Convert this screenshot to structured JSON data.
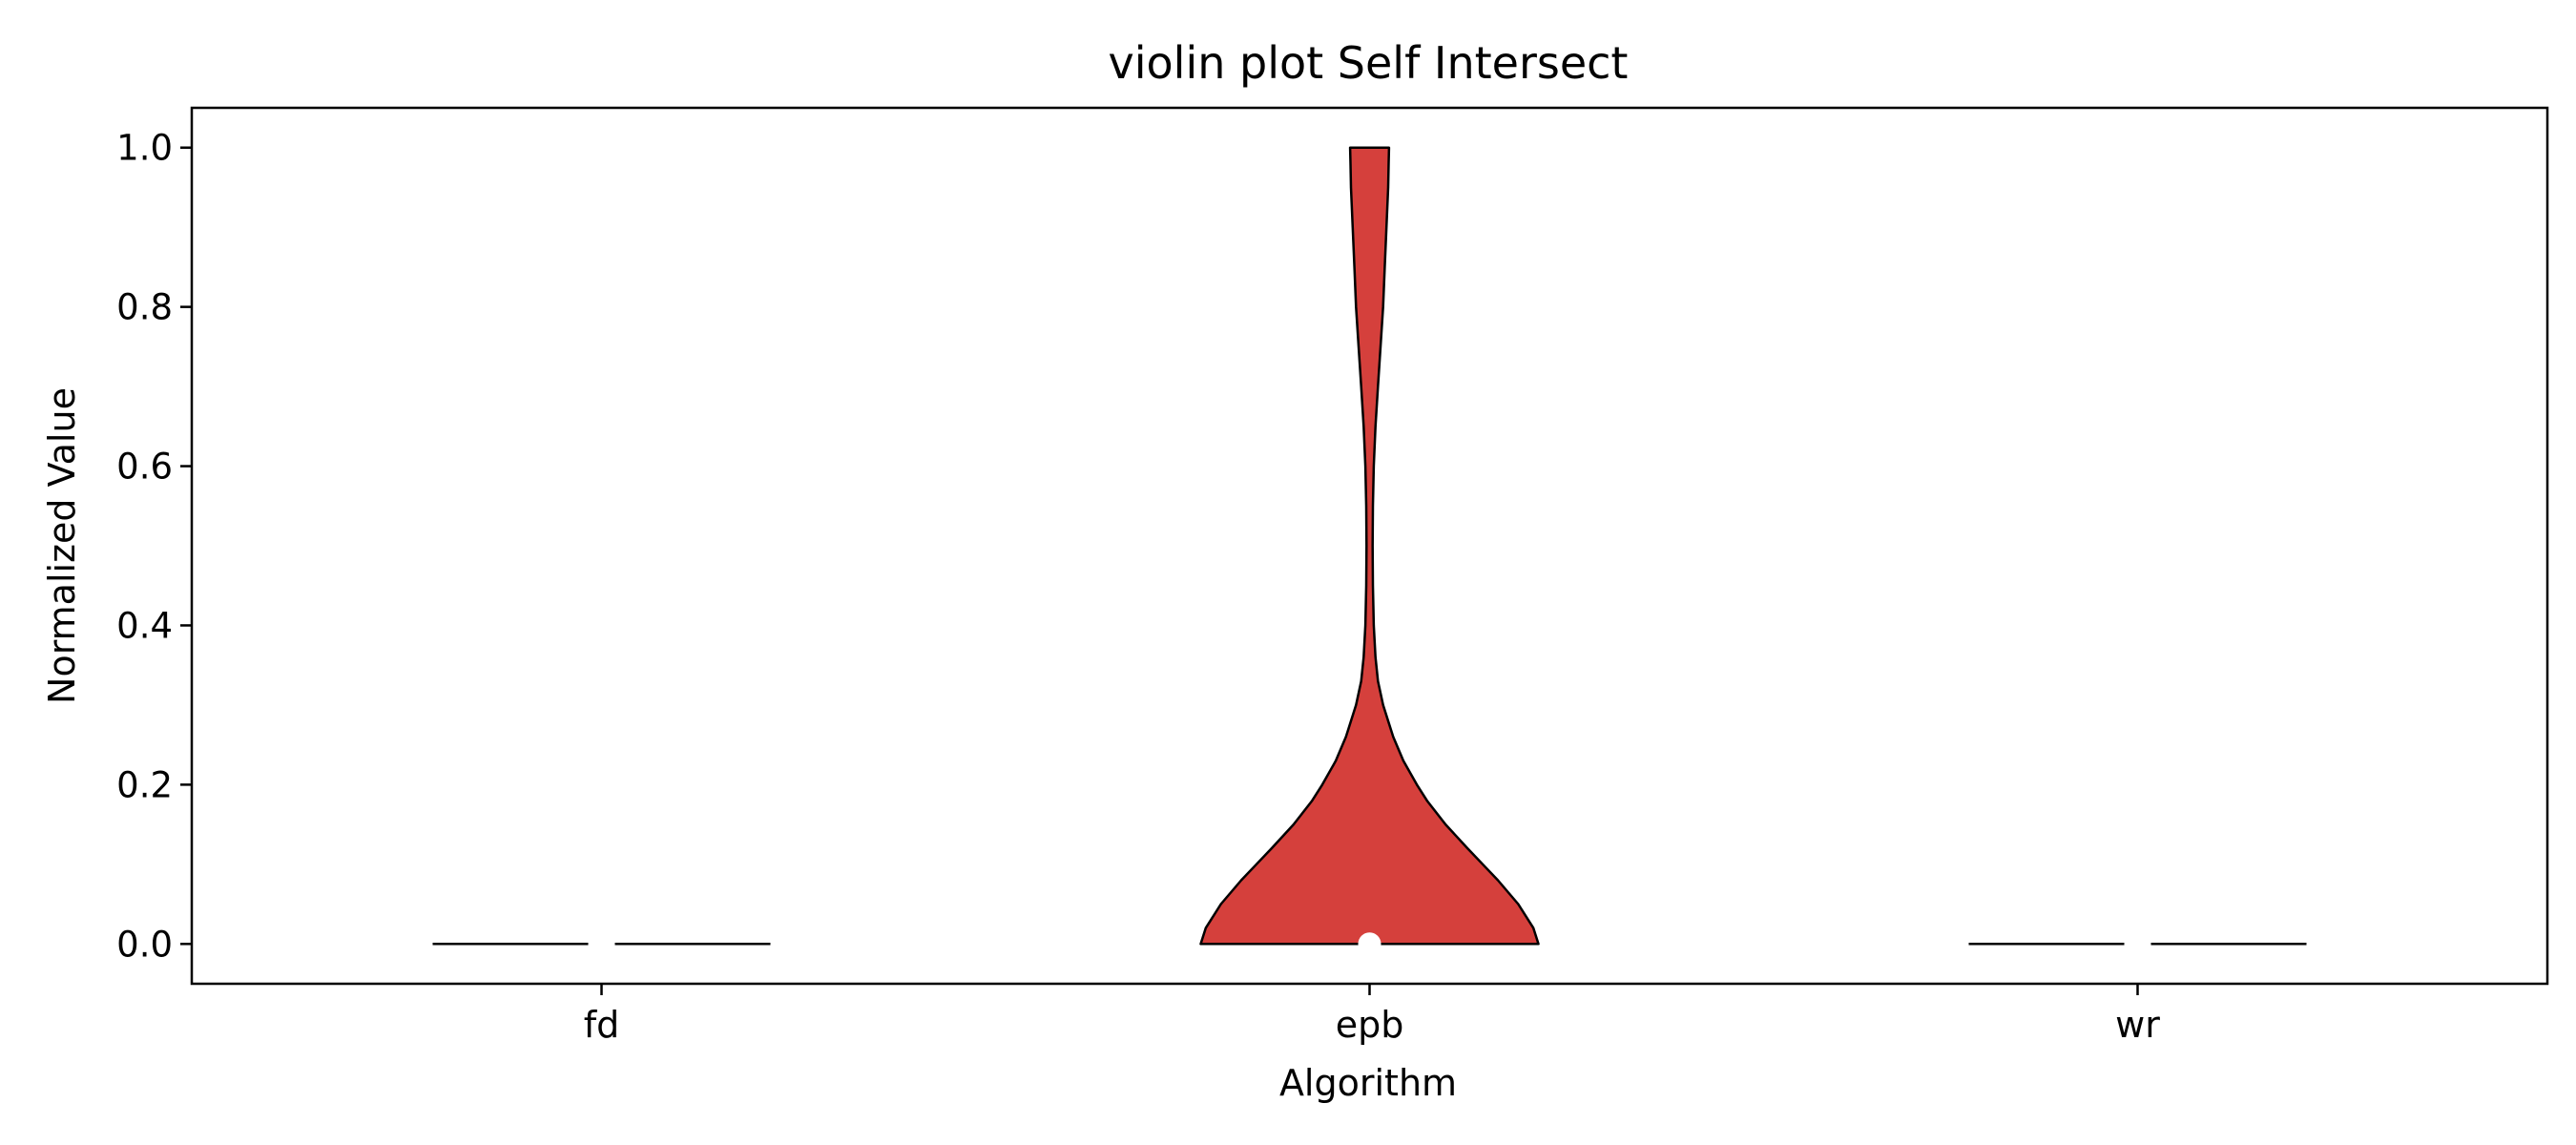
{
  "chart_data": {
    "type": "violin",
    "title": "violin plot Self Intersect",
    "xlabel": "Algorithm",
    "ylabel": "Normalized Value",
    "categories": [
      "fd",
      "epb",
      "wr"
    ],
    "ylim": [
      -0.05,
      1.05
    ],
    "yticks": [
      0.0,
      0.2,
      0.4,
      0.6,
      0.8,
      1.0
    ],
    "ytick_labels": [
      "0.0",
      "0.2",
      "0.4",
      "0.6",
      "0.8",
      "1.0"
    ],
    "grid": false,
    "colors": {
      "violin_fill": "#d5403c",
      "outline": "#000000",
      "median": "#ffffff"
    },
    "violins": [
      {
        "category": "fd",
        "min": 0.0,
        "max": 0.0,
        "median": 0.0,
        "profile": []
      },
      {
        "category": "epb",
        "min": 0.0,
        "max": 1.0,
        "median": 0.0,
        "profile": [
          [
            0.0,
            1.0
          ],
          [
            0.02,
            0.97
          ],
          [
            0.05,
            0.88
          ],
          [
            0.08,
            0.76
          ],
          [
            0.1,
            0.67
          ],
          [
            0.12,
            0.58
          ],
          [
            0.15,
            0.45
          ],
          [
            0.18,
            0.34
          ],
          [
            0.2,
            0.28
          ],
          [
            0.23,
            0.2
          ],
          [
            0.26,
            0.14
          ],
          [
            0.3,
            0.08
          ],
          [
            0.33,
            0.05
          ],
          [
            0.36,
            0.035
          ],
          [
            0.4,
            0.025
          ],
          [
            0.45,
            0.02
          ],
          [
            0.5,
            0.018
          ],
          [
            0.55,
            0.02
          ],
          [
            0.6,
            0.025
          ],
          [
            0.65,
            0.035
          ],
          [
            0.7,
            0.05
          ],
          [
            0.75,
            0.065
          ],
          [
            0.8,
            0.08
          ],
          [
            0.85,
            0.09
          ],
          [
            0.9,
            0.1
          ],
          [
            0.95,
            0.11
          ],
          [
            0.98,
            0.113
          ],
          [
            1.0,
            0.115
          ]
        ]
      },
      {
        "category": "wr",
        "min": 0.0,
        "max": 0.0,
        "median": 0.0,
        "profile": []
      }
    ]
  }
}
